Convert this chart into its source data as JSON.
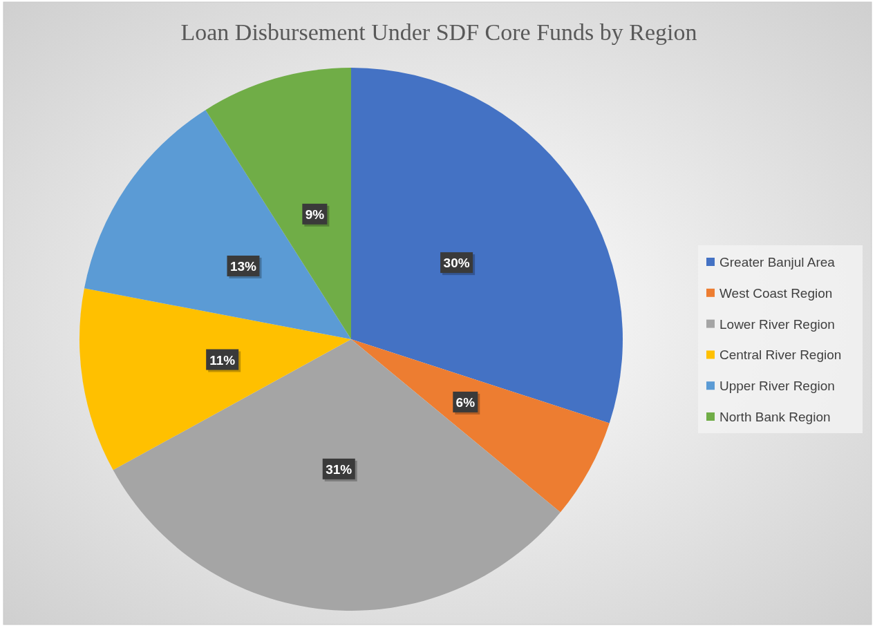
{
  "chart_data": {
    "type": "pie",
    "title": "Loan Disbursement Under SDF Core Funds by Region",
    "categories": [
      "Greater Banjul Area",
      "West Coast Region",
      "Lower River Region",
      "Central River Region",
      "Upper River Region",
      "North Bank Region"
    ],
    "values": [
      30,
      6,
      31,
      11,
      13,
      9
    ],
    "colors": [
      "#4472c4",
      "#ed7d31",
      "#a5a5a5",
      "#ffc000",
      "#5b9bd5",
      "#70ad47"
    ],
    "value_labels": [
      "30%",
      "6%",
      "31%",
      "11%",
      "13%",
      "9%"
    ],
    "legend": "right"
  }
}
